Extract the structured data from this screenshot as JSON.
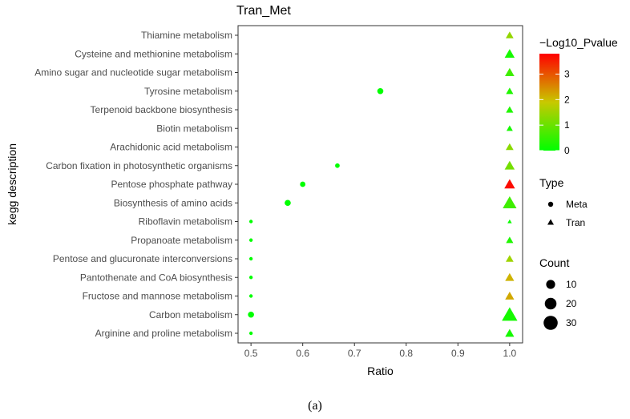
{
  "caption": "(a)",
  "colors": {
    "low": "#00ff00",
    "mid": "#c8c800",
    "high": "#ff0000"
  },
  "chart_data": {
    "type": "scatter",
    "title": "Tran_Met",
    "xlabel": "Ratio",
    "ylabel": "kegg description",
    "xlim": [
      0.475,
      1.025
    ],
    "xticks": [
      "0.5",
      "0.6",
      "0.7",
      "0.8",
      "0.9",
      "1.0"
    ],
    "grid": false,
    "categories": [
      "Thiamine metabolism",
      "Cysteine and methionine metabolism",
      "Amino sugar and nucleotide sugar metabolism",
      "Tyrosine metabolism",
      "Terpenoid backbone biosynthesis",
      "Biotin metabolism",
      "Arachidonic acid metabolism",
      "Carbon fixation in photosynthetic organisms",
      "Pentose phosphate pathway",
      "Biosynthesis of amino acids",
      "Riboflavin metabolism",
      "Propanoate metabolism",
      "Pentose and glucuronate interconversions",
      "Pantothenate and CoA biosynthesis",
      "Fructose and mannose metabolism",
      "Carbon metabolism",
      "Arginine and proline metabolism"
    ],
    "series": [
      {
        "name": "Meta",
        "shape": "circle",
        "points": [
          {
            "y": "Tyrosine metabolism",
            "x": 0.75,
            "count": 4,
            "pval": 0
          },
          {
            "y": "Carbon fixation in photosynthetic organisms",
            "x": 0.667,
            "count": 2,
            "pval": 0
          },
          {
            "y": "Pentose phosphate pathway",
            "x": 0.6,
            "count": 3,
            "pval": 0
          },
          {
            "y": "Biosynthesis of amino acids",
            "x": 0.571,
            "count": 4,
            "pval": 0
          },
          {
            "y": "Riboflavin metabolism",
            "x": 0.5,
            "count": 1,
            "pval": 0
          },
          {
            "y": "Propanoate metabolism",
            "x": 0.5,
            "count": 1,
            "pval": 0
          },
          {
            "y": "Pentose and glucuronate interconversions",
            "x": 0.5,
            "count": 1,
            "pval": 0
          },
          {
            "y": "Pantothenate and CoA biosynthesis",
            "x": 0.5,
            "count": 1,
            "pval": 0
          },
          {
            "y": "Fructose and mannose metabolism",
            "x": 0.5,
            "count": 1,
            "pval": 0
          },
          {
            "y": "Carbon metabolism",
            "x": 0.5,
            "count": 4,
            "pval": 0
          },
          {
            "y": "Arginine and proline metabolism",
            "x": 0.5,
            "count": 1,
            "pval": 0
          }
        ]
      },
      {
        "name": "Tran",
        "shape": "triangle",
        "points": [
          {
            "y": "Thiamine metabolism",
            "x": 1.0,
            "count": 8,
            "pval": 1.4
          },
          {
            "y": "Cysteine and methionine metabolism",
            "x": 1.0,
            "count": 14,
            "pval": 0.2
          },
          {
            "y": "Amino sugar and nucleotide sugar metabolism",
            "x": 1.0,
            "count": 12,
            "pval": 0.6
          },
          {
            "y": "Tyrosine metabolism",
            "x": 1.0,
            "count": 7,
            "pval": 0.3
          },
          {
            "y": "Terpenoid backbone biosynthesis",
            "x": 1.0,
            "count": 7,
            "pval": 0.3
          },
          {
            "y": "Biotin metabolism",
            "x": 1.0,
            "count": 5,
            "pval": 0.2
          },
          {
            "y": "Arachidonic acid metabolism",
            "x": 1.0,
            "count": 8,
            "pval": 1.3
          },
          {
            "y": "Carbon fixation in photosynthetic organisms",
            "x": 1.0,
            "count": 14,
            "pval": 1.1
          },
          {
            "y": "Pentose phosphate pathway",
            "x": 1.0,
            "count": 16,
            "pval": 3.7
          },
          {
            "y": "Biosynthesis of amino acids",
            "x": 1.0,
            "count": 28,
            "pval": 0.6
          },
          {
            "y": "Riboflavin metabolism",
            "x": 1.0,
            "count": 2,
            "pval": 0.1
          },
          {
            "y": "Propanoate metabolism",
            "x": 1.0,
            "count": 7,
            "pval": 0.3
          },
          {
            "y": "Pentose and glucuronate interconversions",
            "x": 1.0,
            "count": 8,
            "pval": 1.5
          },
          {
            "y": "Pantothenate and CoA biosynthesis",
            "x": 1.0,
            "count": 11,
            "pval": 2.1
          },
          {
            "y": "Fructose and mannose metabolism",
            "x": 1.0,
            "count": 11,
            "pval": 2.2
          },
          {
            "y": "Carbon metabolism",
            "x": 1.0,
            "count": 36,
            "pval": 0.2
          },
          {
            "y": "Arginine and proline metabolism",
            "x": 1.0,
            "count": 11,
            "pval": 0.2
          }
        ]
      }
    ],
    "color_legend": {
      "title": "−Log10_Pvalue",
      "range": [
        0,
        3.8
      ],
      "ticks": [
        "0",
        "1",
        "2",
        "3"
      ]
    },
    "shape_legend": {
      "title": "Type",
      "items": [
        "Meta",
        "Tran"
      ]
    },
    "size_legend": {
      "title": "Count",
      "items": [
        "10",
        "20",
        "30"
      ]
    },
    "legend_position": "right"
  }
}
